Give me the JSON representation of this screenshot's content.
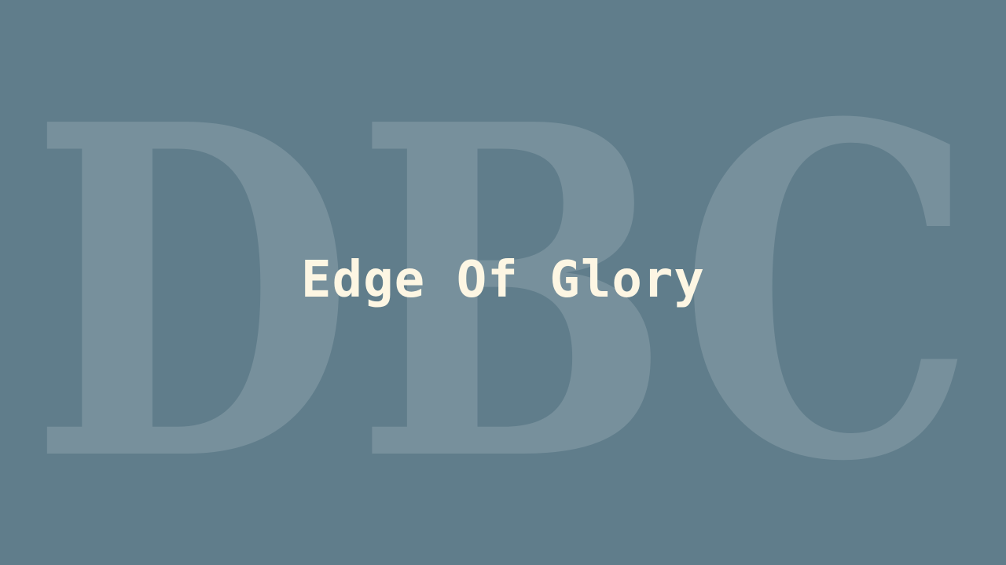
{
  "background_monogram": "DBC",
  "title": "Edge Of Glory",
  "colors": {
    "background": "#607d8b",
    "monogram": "#7a929f",
    "title": "#fdf6e3"
  }
}
